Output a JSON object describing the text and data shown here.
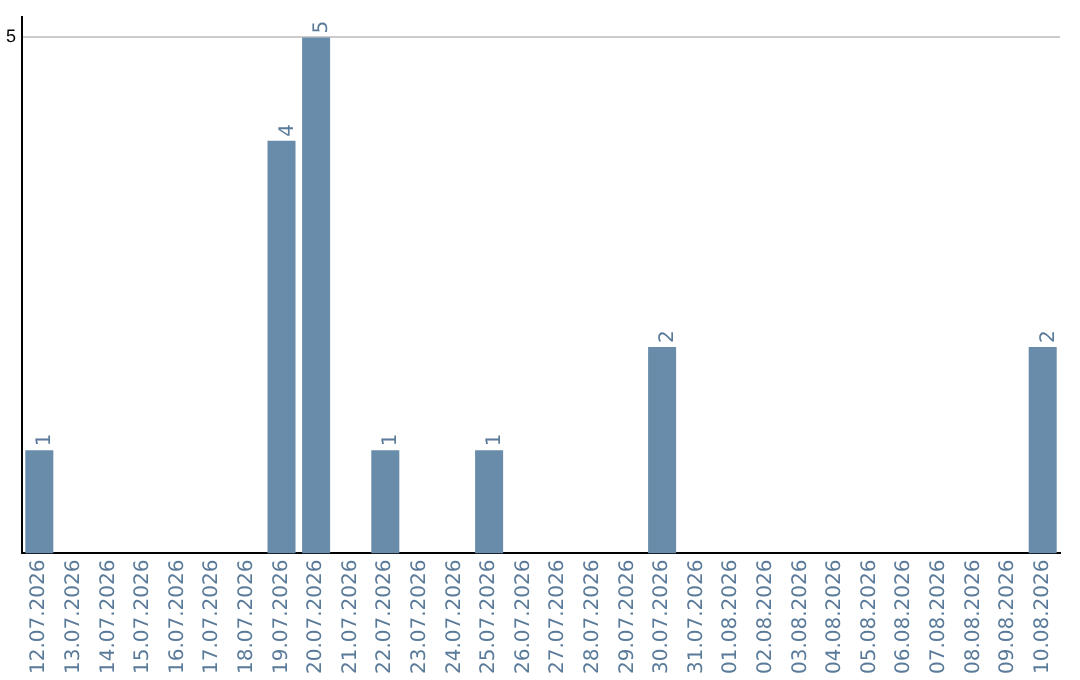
{
  "chart_data": {
    "type": "bar",
    "categories": [
      "12.07.2026",
      "13.07.2026",
      "14.07.2026",
      "15.07.2026",
      "16.07.2026",
      "17.07.2026",
      "18.07.2026",
      "19.07.2026",
      "20.07.2026",
      "21.07.2026",
      "22.07.2026",
      "23.07.2026",
      "24.07.2026",
      "25.07.2026",
      "26.07.2026",
      "27.07.2026",
      "28.07.2026",
      "29.07.2026",
      "30.07.2026",
      "31.07.2026",
      "01.08.2026",
      "02.08.2026",
      "03.08.2026",
      "04.08.2026",
      "05.08.2026",
      "06.08.2026",
      "07.08.2026",
      "08.08.2026",
      "09.08.2026",
      "10.08.2026"
    ],
    "values": [
      1,
      0,
      0,
      0,
      0,
      0,
      0,
      4,
      5,
      0,
      1,
      0,
      0,
      1,
      0,
      0,
      0,
      0,
      2,
      0,
      0,
      0,
      0,
      0,
      0,
      0,
      0,
      0,
      0,
      2
    ],
    "value_labels": [
      "1",
      null,
      null,
      null,
      null,
      null,
      null,
      "4",
      "5",
      null,
      "1",
      null,
      null,
      "1",
      null,
      null,
      null,
      null,
      "2",
      null,
      null,
      null,
      null,
      null,
      null,
      null,
      null,
      null,
      null,
      "2"
    ],
    "color": "#6a8cab",
    "ylim": [
      0,
      5.2
    ],
    "yticks": [
      5
    ],
    "grid": "y"
  }
}
